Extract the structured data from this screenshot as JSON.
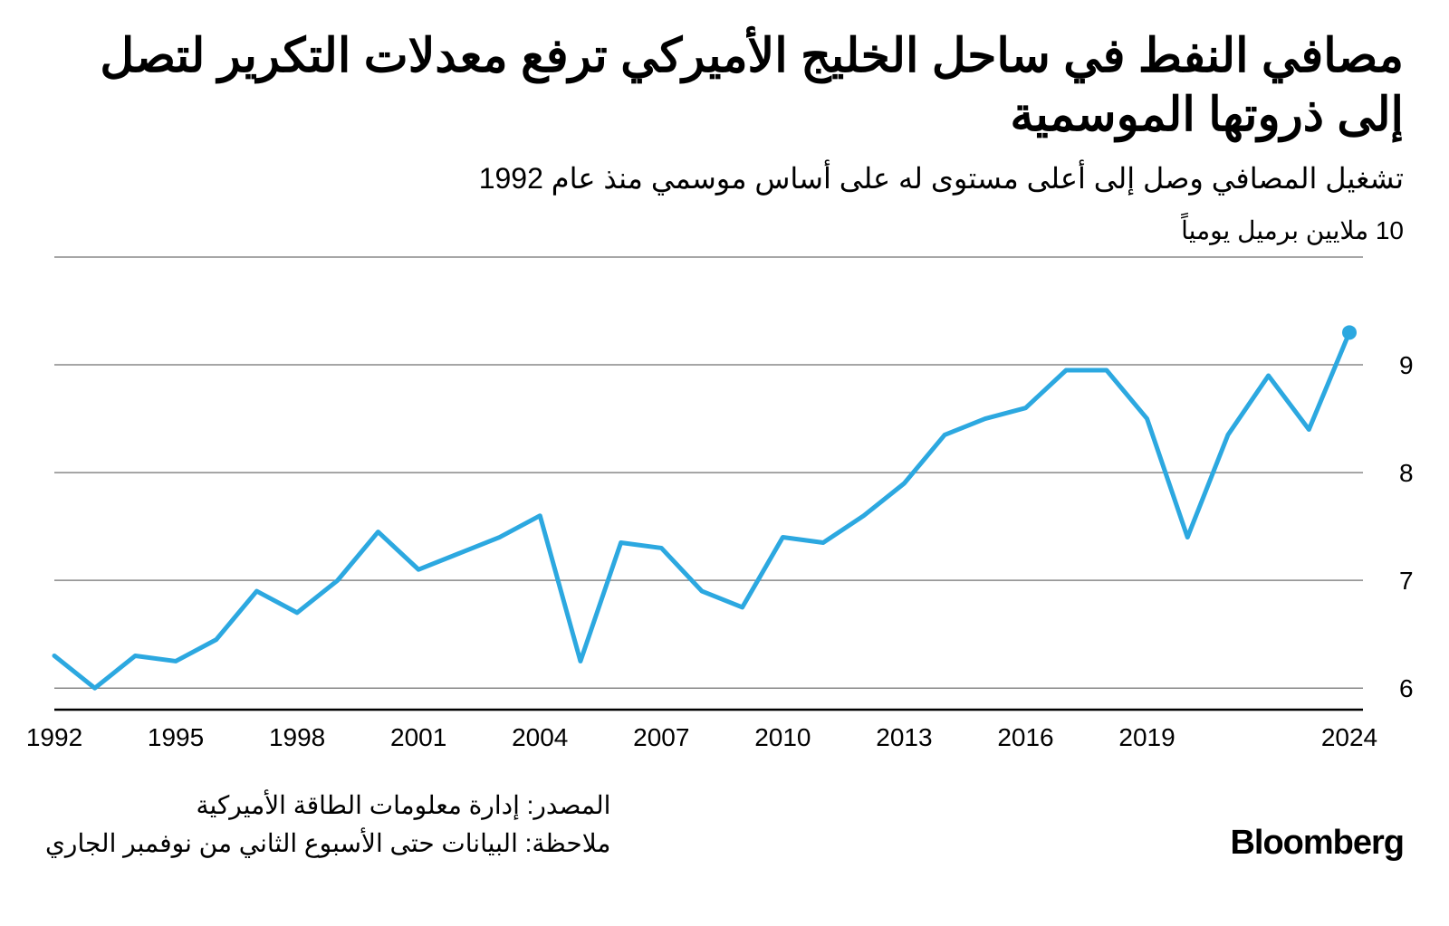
{
  "header": {
    "title": "مصافي النفط في ساحل الخليج الأميركي ترفع معدلات التكرير لتصل إلى ذروتها الموسمية",
    "subtitle": "تشغيل المصافي وصل إلى أعلى مستوى له على أساس موسمي منذ عام 1992"
  },
  "chart": {
    "type": "line",
    "y_axis_label": "10 ملايين برميل يومياً",
    "ylim": [
      5.8,
      10.0
    ],
    "ytick_values": [
      6,
      7,
      8,
      9
    ],
    "xlim": [
      1992,
      2024
    ],
    "xtick_values": [
      1992,
      1995,
      1998,
      2001,
      2004,
      2007,
      2010,
      2013,
      2016,
      2019,
      2024
    ],
    "line_color": "#2ca8e0",
    "line_width": 5,
    "grid_color": "#888888",
    "baseline_color": "#000000",
    "background_color": "#ffffff",
    "axis_fontsize": 28,
    "endpoint_marker": {
      "radius": 8,
      "color": "#2ca8e0"
    },
    "years": [
      1992,
      1993,
      1994,
      1995,
      1996,
      1997,
      1998,
      1999,
      2000,
      2001,
      2002,
      2003,
      2004,
      2005,
      2006,
      2007,
      2008,
      2009,
      2010,
      2011,
      2012,
      2013,
      2014,
      2015,
      2016,
      2017,
      2018,
      2019,
      2020,
      2021,
      2022,
      2023,
      2024
    ],
    "values": [
      6.3,
      6.0,
      6.3,
      6.25,
      6.45,
      6.9,
      6.7,
      7.0,
      7.45,
      7.1,
      7.25,
      7.4,
      7.6,
      6.25,
      7.35,
      7.3,
      6.9,
      6.75,
      7.4,
      7.35,
      7.6,
      7.9,
      8.35,
      8.5,
      8.6,
      8.95,
      8.95,
      8.5,
      7.4,
      8.35,
      8.9,
      8.4,
      9.3
    ]
  },
  "footer": {
    "source": "المصدر: إدارة معلومات الطاقة الأميركية",
    "note": "ملاحظة: البيانات حتى الأسبوع الثاني من نوفمبر الجاري",
    "logo": "Bloomberg"
  }
}
